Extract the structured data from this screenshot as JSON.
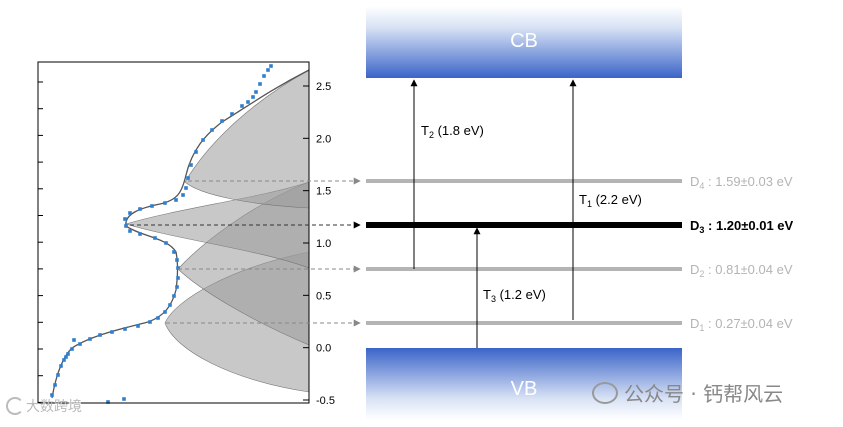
{
  "plot": {
    "y_ticks": [
      "2.5",
      "2.0",
      "1.5",
      "1.0",
      "0.5",
      "0.0",
      "-0.5"
    ],
    "y_tick_values": [
      2.5,
      2.0,
      1.5,
      1.0,
      0.5,
      0.0,
      -0.5
    ],
    "ylim": [
      -0.5,
      2.6
    ]
  },
  "bands": {
    "cb": "CB",
    "vb": "VB"
  },
  "levels": [
    {
      "id": "d4",
      "main": "D",
      "sub": "4",
      "rest": " : 1.59±0.03 eV",
      "energy": 1.59,
      "bold": false
    },
    {
      "id": "d3",
      "main": "D",
      "sub": "3",
      "rest": " : 1.20±0.01 eV",
      "energy": 1.2,
      "bold": true
    },
    {
      "id": "d2",
      "main": "D",
      "sub": "2",
      "rest": " : 0.81±0.04 eV",
      "energy": 0.81,
      "bold": false
    },
    {
      "id": "d1",
      "main": "D",
      "sub": "1",
      "rest": " : 0.27±0.04 eV",
      "energy": 0.27,
      "bold": false
    }
  ],
  "transitions": [
    {
      "id": "t2",
      "main": "T",
      "sub": "2",
      "rest": " (1.8 eV)"
    },
    {
      "id": "t1",
      "main": "T",
      "sub": "1",
      "rest": " (2.2 eV)"
    },
    {
      "id": "t3",
      "main": "T",
      "sub": "3",
      "rest": " (1.2 eV)"
    }
  ],
  "colors": {
    "band_blue": "#3a64c8",
    "level_grey": "#b4b4b4",
    "level_bold": "#000000",
    "fit_line": "#555555",
    "points": "#2f7fd0"
  },
  "watermark": {
    "right": "公众号 · 钙帮风云",
    "left": "大数跨境"
  }
}
